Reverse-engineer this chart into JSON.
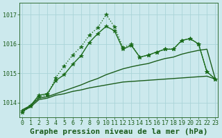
{
  "title": "Graphe pression niveau de la mer (hPa)",
  "background_color": "#cce9ed",
  "grid_color": "#aad4d8",
  "x_ticks": [
    0,
    1,
    2,
    3,
    4,
    5,
    6,
    7,
    8,
    9,
    10,
    11,
    12,
    13,
    14,
    15,
    16,
    17,
    18,
    19,
    20,
    21,
    22,
    23
  ],
  "y_ticks": [
    1014,
    1015,
    1016,
    1017
  ],
  "ylim": [
    1013.5,
    1017.4
  ],
  "xlim": [
    -0.3,
    23.3
  ],
  "lines": [
    {
      "y": [
        1013.7,
        1013.85,
        1014.1,
        1014.15,
        1014.25,
        1014.3,
        1014.38,
        1014.43,
        1014.5,
        1014.55,
        1014.6,
        1014.65,
        1014.7,
        1014.72,
        1014.74,
        1014.76,
        1014.78,
        1014.8,
        1014.82,
        1014.84,
        1014.86,
        1014.88,
        1014.9,
        1014.8
      ],
      "color": "#1a5c1a",
      "lw": 1.0,
      "marker": null,
      "linestyle": "-"
    },
    {
      "y": [
        1013.75,
        1013.9,
        1014.15,
        1014.2,
        1014.3,
        1014.4,
        1014.5,
        1014.6,
        1014.72,
        1014.82,
        1014.95,
        1015.05,
        1015.15,
        1015.22,
        1015.28,
        1015.33,
        1015.42,
        1015.5,
        1015.55,
        1015.65,
        1015.72,
        1015.78,
        1015.82,
        1014.8
      ],
      "color": "#1a5c1a",
      "lw": 1.0,
      "marker": null,
      "linestyle": "-"
    },
    {
      "y": [
        1013.7,
        1013.9,
        1014.25,
        1014.3,
        1014.75,
        1014.95,
        1015.3,
        1015.6,
        1016.05,
        1016.35,
        1016.6,
        1016.45,
        1015.82,
        1015.95,
        1015.55,
        1015.62,
        1015.72,
        1015.82,
        1015.82,
        1016.12,
        1016.18,
        1016.0,
        1015.05,
        1014.8
      ],
      "color": "#1a6b1a",
      "lw": 1.0,
      "marker": "*",
      "markersize": 4,
      "linestyle": "-"
    },
    {
      "y": [
        1013.65,
        1013.88,
        1014.2,
        1014.25,
        1014.85,
        1015.25,
        1015.62,
        1015.9,
        1016.3,
        1016.55,
        1017.0,
        1016.58,
        1015.88,
        1015.98,
        1015.55,
        1015.62,
        1015.72,
        1015.82,
        1015.82,
        1016.12,
        1016.18,
        1016.0,
        1015.05,
        1014.8
      ],
      "color": "#1a6b1a",
      "lw": 1.0,
      "marker": "*",
      "markersize": 4,
      "linestyle": ":"
    }
  ],
  "title_color": "#1a5c1a",
  "title_fontsize": 8,
  "tick_fontsize": 6,
  "tick_color": "#1a5c1a"
}
